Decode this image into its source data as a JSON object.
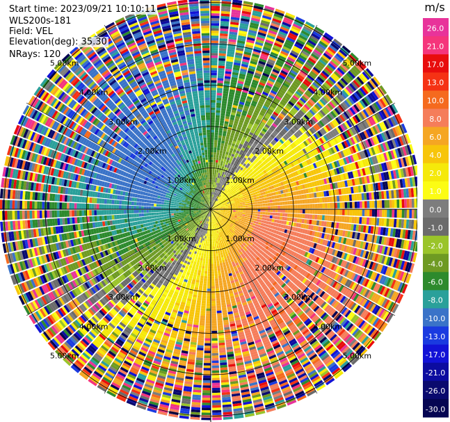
{
  "header": {
    "start_time": "Start time: 2023/09/21 10:10:11",
    "instrument": "WLS200s-181",
    "field": "Field: VEL",
    "elevation": "Elevation(deg): 35.30",
    "nrays": "NRays: 120"
  },
  "colorbar": {
    "unit": "m/s",
    "entries": [
      {
        "label": "26.0",
        "color": "#e8339a"
      },
      {
        "label": "21.0",
        "color": "#f5357b"
      },
      {
        "label": "17.0",
        "color": "#e80d0d"
      },
      {
        "label": "13.0",
        "color": "#f53214"
      },
      {
        "label": "10.0",
        "color": "#f56a1e"
      },
      {
        "label": "8.0",
        "color": "#f57d5a"
      },
      {
        "label": "6.0",
        "color": "#f5a623"
      },
      {
        "label": "4.0",
        "color": "#f7c50a"
      },
      {
        "label": "2.0",
        "color": "#f5e90a"
      },
      {
        "label": "1.0",
        "color": "#fcfc14"
      },
      {
        "label": "0.0",
        "color": "#7d7d7d"
      },
      {
        "label": "-1.0",
        "color": "#6b6b6b"
      },
      {
        "label": "-2.0",
        "color": "#9ac42a"
      },
      {
        "label": "-4.0",
        "color": "#6e9a23"
      },
      {
        "label": "-6.0",
        "color": "#2d8a2d"
      },
      {
        "label": "-8.0",
        "color": "#2aa09a"
      },
      {
        "label": "-10.0",
        "color": "#3a73c8"
      },
      {
        "label": "-13.0",
        "color": "#1a3ae0"
      },
      {
        "label": "-17.0",
        "color": "#1212d6"
      },
      {
        "label": "-21.0",
        "color": "#0c0ca0"
      },
      {
        "label": "-26.0",
        "color": "#0a0a6e"
      },
      {
        "label": "-30.0",
        "color": "#050552"
      }
    ]
  },
  "chart_data": {
    "type": "heatmap",
    "projection": "polar PPI",
    "field": "VEL",
    "n_rays": 120,
    "range_rings_km": [
      1.0,
      2.0,
      3.0,
      4.0,
      5.0
    ],
    "ring_labels": [
      "1.00km",
      "2.00km",
      "3.00km",
      "4.00km",
      "5.00km"
    ],
    "max_range_km": 5.1,
    "colorscale_ms": [
      26.0,
      21.0,
      17.0,
      13.0,
      10.0,
      8.0,
      6.0,
      4.0,
      2.0,
      1.0,
      0.0,
      -1.0,
      -2.0,
      -4.0,
      -6.0,
      -8.0,
      -10.0,
      -13.0,
      -17.0,
      -21.0,
      -26.0,
      -30.0
    ],
    "velocity_pattern": "positive (receding) velocities to the east / south-east up to about 10 m/s, negative (approaching) velocities to the west / north-west down to about -10 m/s; noisy returns beyond about 2.5 km"
  }
}
